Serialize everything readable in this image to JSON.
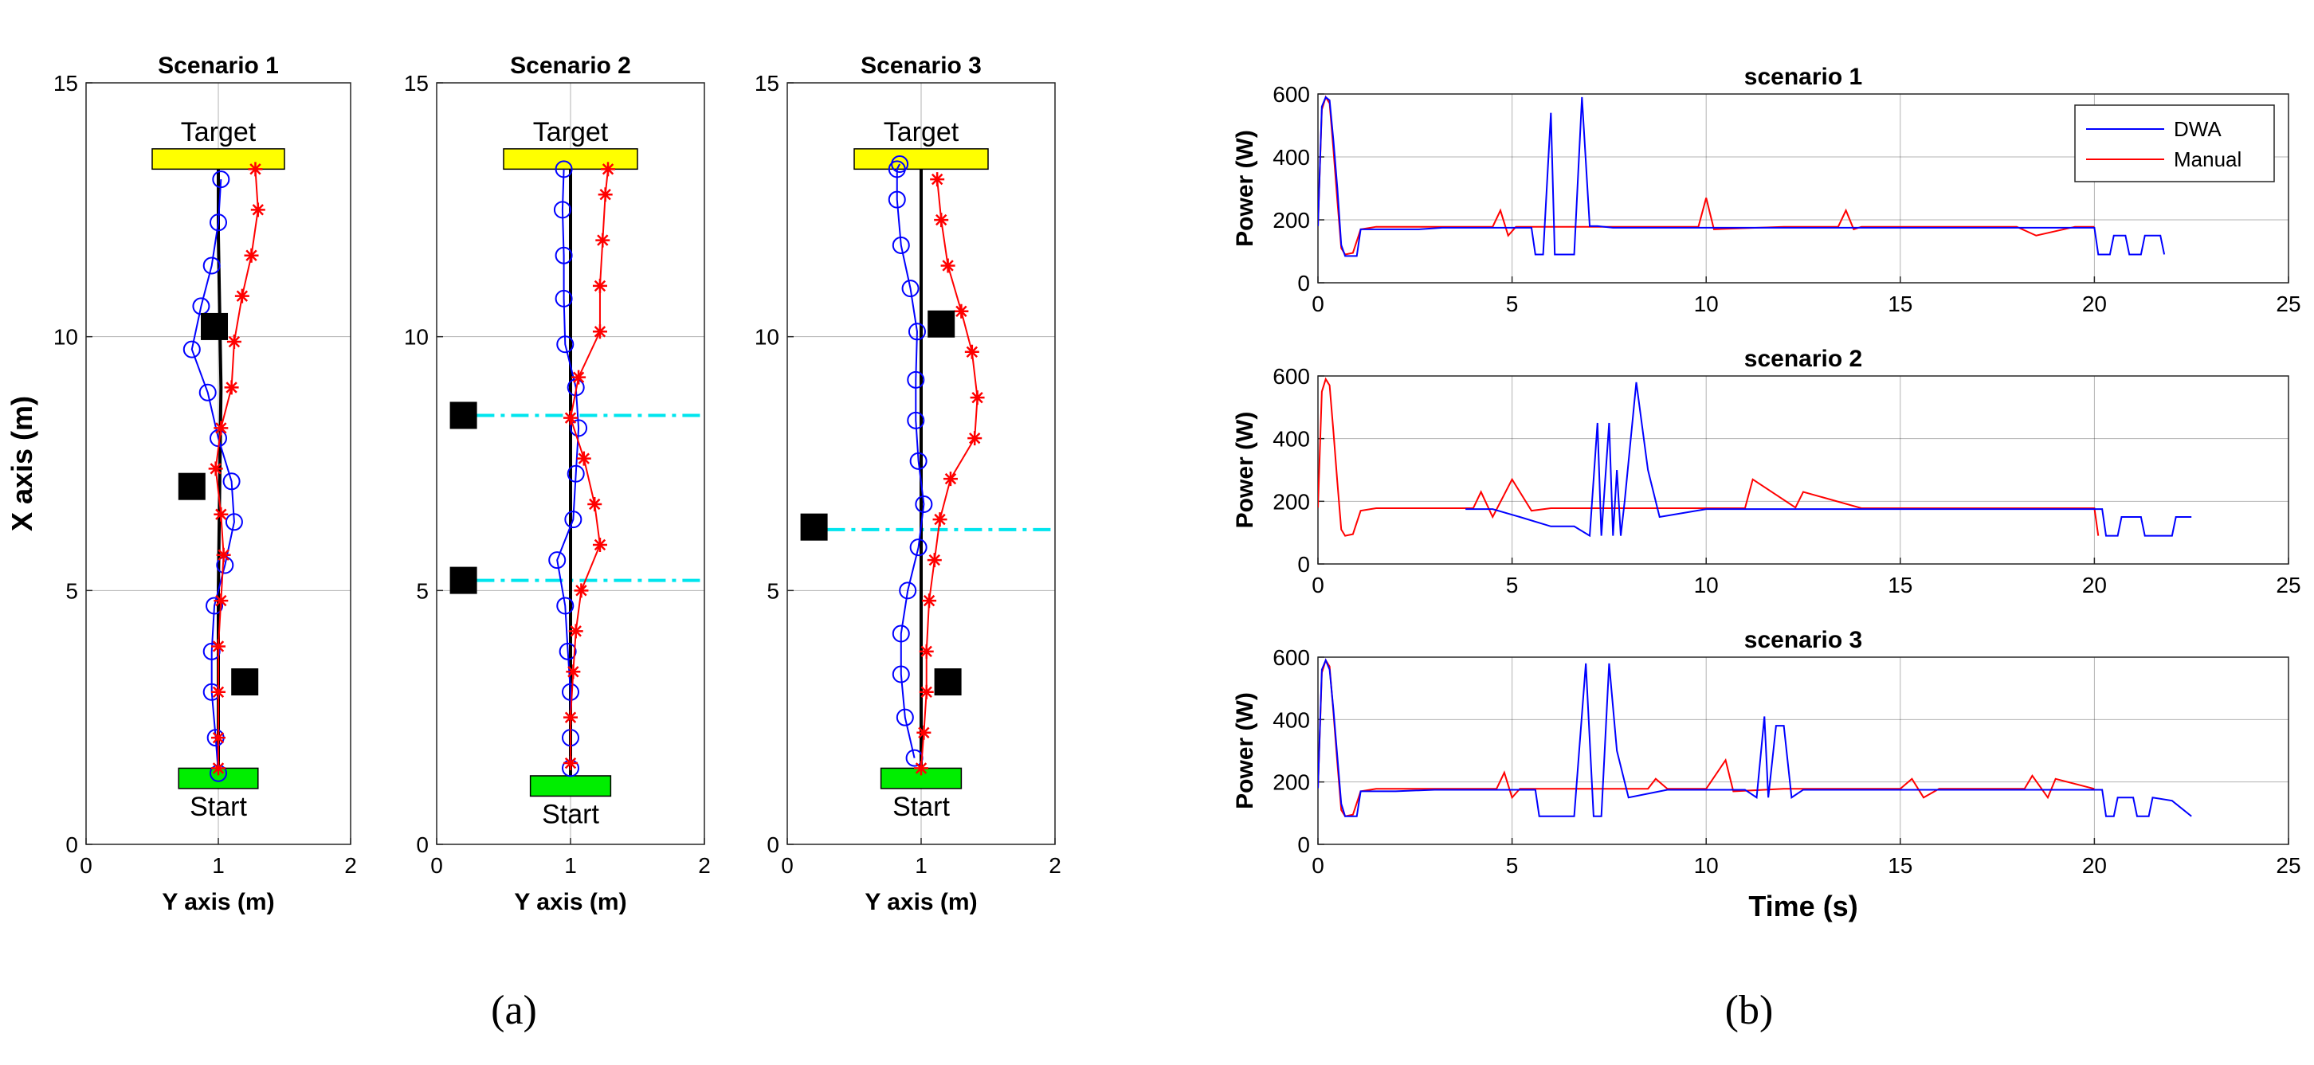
{
  "chart_data": [
    {
      "type": "scatter",
      "title": "Scenario 1",
      "xlabel": "Y axis (m)",
      "ylabel": "X axis (m)",
      "xlim": [
        0,
        2
      ],
      "ylim": [
        0,
        15
      ],
      "xticks": [
        "0",
        "1",
        "2"
      ],
      "yticks": [
        "0",
        "5",
        "10",
        "15"
      ],
      "target_label": "Target",
      "start_label": "Start",
      "target_box": {
        "x": [
          0.5,
          1.5
        ],
        "y": [
          13.3,
          13.7
        ]
      },
      "start_box": {
        "x": [
          0.7,
          1.3
        ],
        "y": [
          1.1,
          1.5
        ]
      },
      "obstacles": [
        {
          "x": 0.97,
          "y": 10.2
        },
        {
          "x": 0.8,
          "y": 7.05
        },
        {
          "x": 1.2,
          "y": 3.2
        }
      ],
      "dashed_lines": [],
      "reference": {
        "x": [
          1.0,
          1.0,
          1.02,
          1.0,
          1.0
        ],
        "y": [
          1.4,
          5,
          9,
          12,
          13.4
        ]
      },
      "series": [
        {
          "name": "DWA",
          "color": "#0000ff",
          "marker": "circle",
          "x": [
            1.0,
            0.98,
            0.95,
            0.95,
            0.97,
            1.05,
            1.12,
            1.1,
            1.0,
            0.92,
            0.8,
            0.87,
            0.95,
            1.0,
            1.02
          ],
          "y": [
            1.4,
            2.1,
            3.0,
            3.8,
            4.7,
            5.5,
            6.35,
            7.15,
            8.0,
            8.9,
            9.75,
            10.6,
            11.4,
            12.25,
            13.1
          ]
        },
        {
          "name": "Manual",
          "color": "#ff0000",
          "marker": "star",
          "x": [
            1.0,
            1.0,
            1.0,
            1.0,
            1.02,
            1.04,
            1.02,
            0.98,
            1.02,
            1.1,
            1.12,
            1.18,
            1.25,
            1.3,
            1.28
          ],
          "y": [
            1.5,
            2.1,
            3.0,
            3.9,
            4.8,
            5.7,
            6.5,
            7.4,
            8.2,
            9.0,
            9.9,
            10.8,
            11.6,
            12.5,
            13.3
          ]
        }
      ]
    },
    {
      "type": "scatter",
      "title": "Scenario 2",
      "xlabel": "Y axis (m)",
      "ylabel": "",
      "xlim": [
        0,
        2
      ],
      "ylim": [
        0,
        15
      ],
      "xticks": [
        "0",
        "1",
        "2"
      ],
      "yticks": [
        "0",
        "5",
        "10",
        "15"
      ],
      "target_label": "Target",
      "start_label": "Start",
      "target_box": {
        "x": [
          0.5,
          1.5
        ],
        "y": [
          13.3,
          13.7
        ]
      },
      "start_box": {
        "x": [
          0.7,
          1.3
        ],
        "y": [
          0.95,
          1.35
        ]
      },
      "obstacles": [
        {
          "x": 0.2,
          "y": 8.45
        },
        {
          "x": 0.2,
          "y": 5.2
        }
      ],
      "dashed_lines": [
        {
          "y": 8.45,
          "x": [
            0.3,
            2.0
          ]
        },
        {
          "y": 5.2,
          "x": [
            0.3,
            2.0
          ]
        }
      ],
      "reference": {
        "x": [
          1.0,
          1.0,
          1.0,
          1.0
        ],
        "y": [
          1.3,
          6,
          11,
          13.4
        ]
      },
      "series": [
        {
          "name": "DWA",
          "color": "#0000ff",
          "marker": "circle",
          "x": [
            1.0,
            1.0,
            1.0,
            0.98,
            0.96,
            0.9,
            1.02,
            1.04,
            1.06,
            1.04,
            0.96,
            0.95,
            0.95,
            0.94,
            0.95
          ],
          "y": [
            1.5,
            2.1,
            3.0,
            3.8,
            4.7,
            5.6,
            6.4,
            7.3,
            8.2,
            9.0,
            9.85,
            10.75,
            11.6,
            12.5,
            13.3
          ]
        },
        {
          "name": "Manual",
          "color": "#ff0000",
          "marker": "star",
          "x": [
            1.0,
            1.0,
            1.02,
            1.04,
            1.08,
            1.22,
            1.18,
            1.1,
            1.0,
            1.06,
            1.22,
            1.22,
            1.24,
            1.26,
            1.28
          ],
          "y": [
            1.6,
            2.5,
            3.4,
            4.2,
            5.0,
            5.9,
            6.7,
            7.6,
            8.4,
            9.2,
            10.1,
            11.0,
            11.9,
            12.8,
            13.3
          ]
        }
      ]
    },
    {
      "type": "scatter",
      "title": "Scenario 3",
      "xlabel": "Y axis (m)",
      "ylabel": "",
      "xlim": [
        0,
        2
      ],
      "ylim": [
        0,
        15
      ],
      "xticks": [
        "0",
        "1",
        "2"
      ],
      "yticks": [
        "0",
        "5",
        "10",
        "15"
      ],
      "target_label": "Target",
      "start_label": "Start",
      "target_box": {
        "x": [
          0.5,
          1.5
        ],
        "y": [
          13.3,
          13.7
        ]
      },
      "start_box": {
        "x": [
          0.7,
          1.3
        ],
        "y": [
          1.1,
          1.5
        ]
      },
      "obstacles": [
        {
          "x": 1.15,
          "y": 10.25
        },
        {
          "x": 0.2,
          "y": 6.25
        },
        {
          "x": 1.2,
          "y": 3.2
        }
      ],
      "dashed_lines": [
        {
          "y": 6.2,
          "x": [
            0.3,
            2.0
          ]
        }
      ],
      "reference": {
        "x": [
          1.0,
          1.0,
          1.0,
          1.0
        ],
        "y": [
          1.5,
          6,
          11,
          13.4
        ]
      },
      "series": [
        {
          "name": "DWA",
          "color": "#0000ff",
          "marker": "circle",
          "x": [
            0.95,
            0.88,
            0.85,
            0.85,
            0.9,
            0.98,
            1.02,
            0.98,
            0.96,
            0.96,
            0.97,
            0.92,
            0.85,
            0.82,
            0.82,
            0.84
          ],
          "y": [
            1.7,
            2.5,
            3.35,
            4.15,
            5.0,
            5.85,
            6.7,
            7.55,
            8.35,
            9.15,
            10.1,
            10.95,
            11.8,
            12.7,
            13.3,
            13.4
          ]
        },
        {
          "name": "Manual",
          "color": "#ff0000",
          "marker": "star",
          "x": [
            1.0,
            1.02,
            1.04,
            1.04,
            1.06,
            1.1,
            1.14,
            1.22,
            1.4,
            1.42,
            1.38,
            1.3,
            1.2,
            1.15,
            1.12
          ],
          "y": [
            1.5,
            2.2,
            3.0,
            3.8,
            4.8,
            5.6,
            6.4,
            7.2,
            8.0,
            8.8,
            9.7,
            10.5,
            11.4,
            12.3,
            13.1
          ]
        }
      ]
    },
    {
      "type": "line",
      "title": "scenario 1",
      "xlabel": "",
      "ylabel": "Power (W)",
      "xlim": [
        0,
        25
      ],
      "ylim": [
        0,
        600
      ],
      "xticks": [
        "0",
        "5",
        "10",
        "15",
        "20",
        "25"
      ],
      "yticks": [
        "0",
        "200",
        "400",
        "600"
      ],
      "legend": [
        "DWA",
        "Manual"
      ],
      "series": [
        {
          "name": "DWA",
          "color": "#0000ff",
          "x": [
            0,
            0.1,
            0.2,
            0.3,
            0.4,
            0.5,
            0.6,
            0.7,
            0.8,
            1.0,
            1.1,
            2.0,
            2.6,
            3.2,
            4.0,
            5.5,
            5.6,
            5.8,
            6.0,
            6.1,
            6.2,
            6.4,
            6.6,
            6.8,
            7.0,
            7.2,
            7.6,
            8.5,
            10,
            12,
            13.5,
            15,
            17,
            19,
            20.0,
            20.1,
            20.4,
            20.5,
            20.8,
            20.9,
            21.2,
            21.3,
            21.7,
            21.8
          ],
          "y": [
            180,
            560,
            590,
            580,
            450,
            300,
            120,
            85,
            85,
            85,
            170,
            170,
            170,
            175,
            175,
            175,
            90,
            90,
            540,
            90,
            90,
            90,
            90,
            590,
            180,
            180,
            175,
            175,
            175,
            175,
            175,
            175,
            175,
            175,
            175,
            90,
            90,
            150,
            150,
            90,
            90,
            150,
            150,
            90
          ]
        },
        {
          "name": "Manual",
          "color": "#ff0000",
          "x": [
            0,
            0.1,
            0.2,
            0.3,
            0.4,
            0.5,
            0.6,
            0.7,
            0.9,
            1.1,
            1.5,
            2.5,
            4.5,
            4.7,
            4.9,
            5.1,
            6,
            8,
            9.8,
            10.0,
            10.2,
            12,
            13.4,
            13.6,
            13.8,
            14,
            16,
            18,
            18.5,
            19.5,
            20.0
          ],
          "y": [
            180,
            550,
            590,
            570,
            420,
            260,
            110,
            90,
            95,
            170,
            178,
            178,
            178,
            230,
            150,
            178,
            178,
            178,
            178,
            270,
            170,
            178,
            178,
            230,
            170,
            178,
            178,
            178,
            150,
            178,
            178
          ]
        }
      ]
    },
    {
      "type": "line",
      "title": "scenario 2",
      "xlabel": "",
      "ylabel": "Power (W)",
      "xlim": [
        0,
        25
      ],
      "ylim": [
        0,
        600
      ],
      "xticks": [
        "0",
        "5",
        "10",
        "15",
        "20",
        "25"
      ],
      "yticks": [
        "0",
        "200",
        "400",
        "600"
      ],
      "series": [
        {
          "name": "DWA",
          "color": "#0000ff",
          "x": [
            3.8,
            4.5,
            5.2,
            6.0,
            6.6,
            7.0,
            7.2,
            7.3,
            7.5,
            7.6,
            7.7,
            7.8,
            7.9,
            8.2,
            8.5,
            8.8,
            10,
            12,
            14,
            16,
            18,
            20.2,
            20.3,
            20.6,
            20.7,
            21.2,
            21.3,
            22,
            22.1,
            22.5
          ],
          "y": [
            175,
            175,
            150,
            120,
            120,
            90,
            450,
            90,
            450,
            90,
            300,
            90,
            200,
            580,
            300,
            150,
            175,
            175,
            175,
            175,
            175,
            175,
            90,
            90,
            150,
            150,
            90,
            90,
            150,
            150
          ]
        },
        {
          "name": "Manual",
          "color": "#ff0000",
          "x": [
            0,
            0.1,
            0.2,
            0.3,
            0.4,
            0.5,
            0.6,
            0.7,
            0.9,
            1.1,
            1.5,
            3,
            4.0,
            4.2,
            4.5,
            5.0,
            5.5,
            6.0,
            8,
            10,
            11.0,
            11.2,
            12.3,
            12.5,
            14,
            16,
            18,
            20.0,
            20.1
          ],
          "y": [
            180,
            550,
            590,
            570,
            420,
            260,
            110,
            90,
            95,
            170,
            178,
            178,
            178,
            230,
            150,
            270,
            170,
            178,
            178,
            178,
            178,
            270,
            180,
            230,
            178,
            178,
            178,
            178,
            90
          ]
        }
      ]
    },
    {
      "type": "line",
      "title": "scenario 3",
      "xlabel": "Time (s)",
      "ylabel": "Power (W)",
      "xlim": [
        0,
        25
      ],
      "ylim": [
        0,
        600
      ],
      "xticks": [
        "0",
        "5",
        "10",
        "15",
        "20",
        "25"
      ],
      "yticks": [
        "0",
        "200",
        "400",
        "600"
      ],
      "series": [
        {
          "name": "DWA",
          "color": "#0000ff",
          "x": [
            0,
            0.1,
            0.2,
            0.3,
            0.4,
            0.5,
            0.6,
            0.7,
            0.8,
            1.0,
            1.1,
            2.0,
            3.0,
            4.0,
            5.6,
            5.7,
            6.6,
            6.9,
            7.1,
            7.3,
            7.5,
            7.7,
            8.0,
            9,
            10,
            11,
            11.3,
            11.5,
            11.6,
            11.8,
            12.0,
            12.2,
            12.5,
            14,
            16,
            18,
            20.2,
            20.3,
            20.5,
            20.6,
            21.0,
            21.1,
            21.4,
            21.5,
            22,
            22.5
          ],
          "y": [
            180,
            560,
            590,
            560,
            430,
            280,
            130,
            90,
            90,
            90,
            170,
            170,
            175,
            175,
            175,
            90,
            90,
            580,
            90,
            90,
            580,
            300,
            150,
            175,
            175,
            175,
            150,
            410,
            150,
            380,
            380,
            150,
            175,
            175,
            175,
            175,
            175,
            90,
            90,
            150,
            150,
            90,
            90,
            150,
            140,
            90
          ]
        },
        {
          "name": "Manual",
          "color": "#ff0000",
          "x": [
            0,
            0.1,
            0.2,
            0.3,
            0.4,
            0.5,
            0.6,
            0.7,
            0.9,
            1.1,
            1.5,
            3,
            4.6,
            4.8,
            5.0,
            5.2,
            6,
            8.5,
            8.7,
            9.0,
            10,
            10.5,
            10.7,
            12,
            15,
            15.3,
            15.6,
            16,
            18.2,
            18.4,
            18.8,
            19.0,
            20.0
          ],
          "y": [
            180,
            550,
            590,
            570,
            420,
            260,
            110,
            90,
            95,
            170,
            178,
            178,
            178,
            230,
            150,
            178,
            178,
            178,
            210,
            178,
            178,
            270,
            170,
            178,
            178,
            210,
            150,
            178,
            178,
            220,
            150,
            210,
            178
          ]
        }
      ]
    }
  ],
  "panel_labels": [
    "(a)",
    "(b)"
  ]
}
